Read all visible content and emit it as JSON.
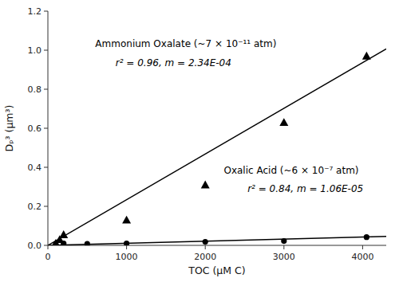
{
  "chart_data": {
    "type": "scatter",
    "xlabel": "TOC (μM C)",
    "ylabel": "Dₚ³ (μm³)",
    "xlim": [
      0,
      4300
    ],
    "ylim": [
      0.0,
      1.2
    ],
    "xticks": [
      0,
      1000,
      2000,
      3000,
      4000
    ],
    "yticks": [
      {
        "value": 0.0,
        "label": "0.0"
      },
      0.2,
      0.4,
      0.6,
      0.8,
      {
        "value": 1.0,
        "label": "1.0"
      },
      1.2
    ],
    "grid": false,
    "series": [
      {
        "type": "line",
        "line_style": "solid",
        "color": "#000000",
        "x": [
          0,
          4300
        ],
        "values": [
          0.0,
          1.0062
        ]
      },
      {
        "type": "line",
        "line_style": "solid",
        "color": "#000000",
        "x": [
          0,
          4300
        ],
        "values": [
          0.0,
          0.04558
        ]
      },
      {
        "type": "scatter",
        "marker": "triangle",
        "color": "#000000",
        "x": [
          100,
          150,
          200,
          1000,
          2000,
          3000,
          4050
        ],
        "values": [
          0.01,
          0.03,
          0.055,
          0.13,
          0.31,
          0.63,
          0.97
        ]
      },
      {
        "type": "scatter",
        "marker": "circle",
        "color": "#000000",
        "x": [
          100,
          200,
          500,
          1000,
          2000,
          3000,
          4050
        ],
        "values": [
          0.005,
          0.01,
          0.008,
          0.01,
          0.018,
          0.022,
          0.042
        ]
      }
    ],
    "annotations": [
      "Ammonium Oxalate  (~7 × 10⁻¹¹ atm)",
      "r² = 0.96, m = 2.34E-04",
      "Oxalic Acid  (~6 × 10⁻⁷ atm)",
      "r² = 0.84, m = 1.06E-05"
    ]
  }
}
